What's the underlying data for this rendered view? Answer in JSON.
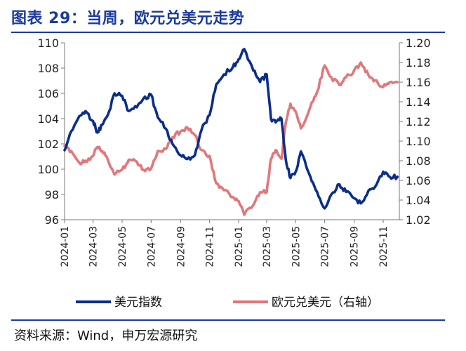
{
  "header": {
    "title": "图表 29：当周，欧元兑美元走势"
  },
  "footer": {
    "source": "资料来源：Wind，申万宏源研究"
  },
  "colors": {
    "title": "#1a3aa0",
    "dxy": "#0a2e8c",
    "eurusd": "#e2777a"
  },
  "chart_data": {
    "type": "line",
    "title": "",
    "xlabel": "",
    "ylabel": "",
    "y2label": "",
    "ylim": [
      96,
      110
    ],
    "y2lim": [
      1.02,
      1.2
    ],
    "yticks": [
      "96",
      "98",
      "100",
      "102",
      "104",
      "106",
      "108",
      "110"
    ],
    "y2ticks": [
      "1.02",
      "1.04",
      "1.06",
      "1.08",
      "1.10",
      "1.12",
      "1.14",
      "1.16",
      "1.18",
      "1.20"
    ],
    "xticks": [
      "2024-01",
      "2024-03",
      "2024-05",
      "2024-07",
      "2024-09",
      "2024-11",
      "2025-01",
      "2025-03",
      "2025-05",
      "2025-07",
      "2025-09",
      "2025-11"
    ],
    "xlim": [
      "2024-01-01",
      "2025-12-05"
    ],
    "grid": false,
    "legend": "bottom",
    "series": [
      {
        "name": "美元指数",
        "axis": "left",
        "x": [
          "2024-01-01",
          "2024-01-15",
          "2024-02-01",
          "2024-02-14",
          "2024-03-01",
          "2024-03-10",
          "2024-03-20",
          "2024-04-01",
          "2024-04-15",
          "2024-05-01",
          "2024-05-15",
          "2024-06-01",
          "2024-06-15",
          "2024-07-01",
          "2024-07-15",
          "2024-08-01",
          "2024-08-15",
          "2024-09-01",
          "2024-09-15",
          "2024-10-01",
          "2024-10-15",
          "2024-11-01",
          "2024-11-15",
          "2024-12-01",
          "2024-12-20",
          "2025-01-01",
          "2025-01-13",
          "2025-02-01",
          "2025-02-15",
          "2025-03-01",
          "2025-03-10",
          "2025-03-20",
          "2025-04-01",
          "2025-04-10",
          "2025-04-20",
          "2025-05-01",
          "2025-05-12",
          "2025-06-01",
          "2025-06-15",
          "2025-07-01",
          "2025-07-15",
          "2025-08-01",
          "2025-08-15",
          "2025-09-01",
          "2025-09-15",
          "2025-10-01",
          "2025-10-15",
          "2025-11-01",
          "2025-11-15",
          "2025-12-01"
        ],
        "values": [
          101.5,
          103.0,
          104.2,
          104.6,
          103.8,
          102.9,
          103.5,
          104.3,
          106.0,
          105.8,
          104.6,
          104.9,
          105.6,
          105.9,
          104.1,
          103.2,
          102.0,
          101.1,
          100.8,
          101.1,
          103.1,
          104.3,
          106.7,
          107.5,
          108.1,
          108.7,
          109.5,
          107.8,
          106.9,
          107.5,
          104.0,
          103.7,
          104.0,
          100.8,
          99.3,
          99.8,
          101.4,
          99.4,
          98.2,
          96.9,
          98.0,
          98.8,
          98.2,
          97.7,
          97.3,
          98.3,
          98.6,
          99.8,
          99.4,
          99.4
        ]
      },
      {
        "name": "欧元兑美元（右轴）",
        "axis": "right",
        "x": [
          "2024-01-01",
          "2024-01-15",
          "2024-02-01",
          "2024-02-14",
          "2024-03-01",
          "2024-03-10",
          "2024-03-20",
          "2024-04-01",
          "2024-04-15",
          "2024-05-01",
          "2024-05-15",
          "2024-06-01",
          "2024-06-15",
          "2024-07-01",
          "2024-07-15",
          "2024-08-01",
          "2024-08-15",
          "2024-09-01",
          "2024-09-15",
          "2024-10-01",
          "2024-10-15",
          "2024-11-01",
          "2024-11-15",
          "2024-12-01",
          "2024-12-20",
          "2025-01-01",
          "2025-01-13",
          "2025-02-01",
          "2025-02-15",
          "2025-03-01",
          "2025-03-10",
          "2025-03-20",
          "2025-04-01",
          "2025-04-10",
          "2025-04-20",
          "2025-05-01",
          "2025-05-12",
          "2025-06-01",
          "2025-06-15",
          "2025-07-01",
          "2025-07-15",
          "2025-08-01",
          "2025-08-15",
          "2025-09-01",
          "2025-09-15",
          "2025-10-01",
          "2025-10-15",
          "2025-11-01",
          "2025-11-15",
          "2025-12-01"
        ],
        "values": [
          1.095,
          1.09,
          1.078,
          1.08,
          1.085,
          1.094,
          1.09,
          1.081,
          1.066,
          1.071,
          1.081,
          1.079,
          1.071,
          1.072,
          1.09,
          1.092,
          1.104,
          1.11,
          1.114,
          1.106,
          1.091,
          1.085,
          1.057,
          1.05,
          1.043,
          1.039,
          1.025,
          1.035,
          1.048,
          1.048,
          1.082,
          1.091,
          1.082,
          1.118,
          1.138,
          1.13,
          1.113,
          1.135,
          1.15,
          1.177,
          1.165,
          1.157,
          1.165,
          1.172,
          1.18,
          1.167,
          1.162,
          1.155,
          1.16,
          1.16
        ]
      }
    ]
  }
}
